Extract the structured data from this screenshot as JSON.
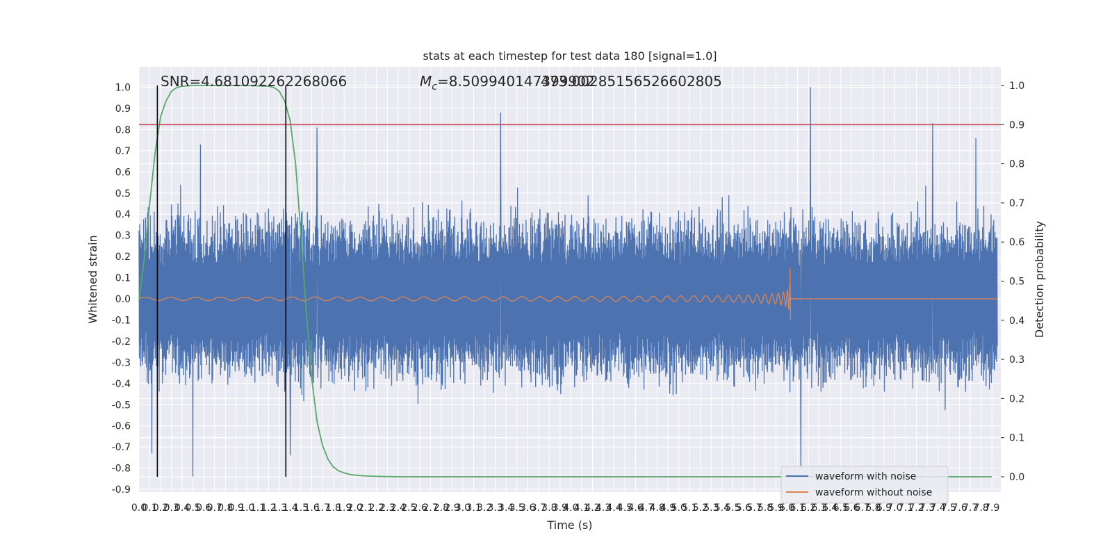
{
  "chart_data": {
    "type": "line",
    "title": "stats at each timestep for test data 180 [signal=1.0]",
    "xlabel": "Time (s)",
    "ylabel": "Whitened strain",
    "ylabel_right": "Detection probability",
    "xlim": [
      0.0,
      7.95
    ],
    "ylim": [
      -0.95,
      1.08
    ],
    "ylim_right": [
      -0.05,
      1.05
    ],
    "x_ticks": [
      0.0,
      0.1,
      0.2,
      0.3,
      0.4,
      0.5,
      0.6,
      0.7,
      0.8,
      0.9,
      1.0,
      1.1,
      1.2,
      1.3,
      1.4,
      1.5,
      1.6,
      1.7,
      1.8,
      1.9,
      2.0,
      2.1,
      2.2,
      2.3,
      2.4,
      2.5,
      2.6,
      2.7,
      2.8,
      2.9,
      3.0,
      3.1,
      3.2,
      3.3,
      3.4,
      3.5,
      3.6,
      3.7,
      3.8,
      3.9,
      4.0,
      4.1,
      4.2,
      4.3,
      4.4,
      4.5,
      4.6,
      4.7,
      4.8,
      4.9,
      5.0,
      5.1,
      5.2,
      5.3,
      5.4,
      5.5,
      5.6,
      5.7,
      5.8,
      5.9,
      6.0,
      6.1,
      6.2,
      6.3,
      6.4,
      6.5,
      6.6,
      6.7,
      6.8,
      6.9,
      7.0,
      7.1,
      7.2,
      7.3,
      7.4,
      7.5,
      7.6,
      7.7,
      7.8,
      7.9
    ],
    "y_ticks": [
      -0.9,
      -0.8,
      -0.7,
      -0.6,
      -0.5,
      -0.4,
      -0.3,
      -0.2,
      -0.1,
      0.0,
      0.1,
      0.2,
      0.3,
      0.4,
      0.5,
      0.6,
      0.7,
      0.8,
      0.9,
      1.0
    ],
    "y_ticks_right": [
      0.0,
      0.1,
      0.2,
      0.3,
      0.4,
      0.5,
      0.6,
      0.7,
      0.8,
      0.9,
      1.0
    ],
    "grid": true,
    "legend_placement": "lower-right",
    "annotations": {
      "snr": "SNR=4.681092262268066",
      "mc_symbol": "M",
      "mc_sub": "c",
      "mc_value": "=8.509940147399902",
      "mc_overlap": "473.00285156526602805"
    },
    "series": [
      {
        "name": "waveform with noise",
        "color": "#4c72b0",
        "description_values": "dense noise, envelope approx ±0.45 with peaks to 1.0 at t≈6.2 and -0.84 at t≈0.5",
        "peaks": [
          {
            "x": 0.5,
            "y": -0.84
          },
          {
            "x": 0.57,
            "y": 0.73
          },
          {
            "x": 1.65,
            "y": 0.81
          },
          {
            "x": 3.35,
            "y": 0.88
          },
          {
            "x": 6.13,
            "y": -0.8
          },
          {
            "x": 6.22,
            "y": 1.0
          },
          {
            "x": 7.35,
            "y": 0.83
          },
          {
            "x": 7.75,
            "y": 0.76
          },
          {
            "x": 0.12,
            "y": -0.73
          },
          {
            "x": 1.4,
            "y": -0.74
          }
        ]
      },
      {
        "name": "waveform without noise",
        "color": "#dd8452",
        "chirp_start": 0.0,
        "chirp_end": 6.03,
        "start_amplitude": 0.008,
        "peak_amplitude": 0.15
      }
    ],
    "detection_probability": {
      "color": "#55a868",
      "x": [
        0.0,
        0.05,
        0.1,
        0.15,
        0.2,
        0.25,
        0.3,
        0.35,
        0.4,
        0.5,
        0.6,
        0.8,
        1.0,
        1.2,
        1.25,
        1.3,
        1.35,
        1.4,
        1.45,
        1.5,
        1.55,
        1.6,
        1.65,
        1.7,
        1.75,
        1.8,
        1.85,
        1.9,
        1.95,
        2.0,
        2.1,
        2.2,
        2.4,
        2.6,
        3.0,
        4.0,
        5.0,
        6.0,
        7.0,
        7.9
      ],
      "y": [
        0.45,
        0.56,
        0.7,
        0.83,
        0.92,
        0.96,
        0.985,
        0.995,
        0.998,
        1.0,
        1.0,
        1.0,
        1.0,
        0.998,
        0.995,
        0.985,
        0.96,
        0.91,
        0.8,
        0.62,
        0.42,
        0.25,
        0.14,
        0.08,
        0.045,
        0.025,
        0.015,
        0.01,
        0.006,
        0.004,
        0.002,
        0.001,
        0.0,
        0.0,
        0.0,
        0.0,
        0.0,
        0.0,
        0.0,
        0.0
      ]
    },
    "threshold_prob": 0.9,
    "threshold_color": "#c44e52",
    "vertical_lines": [
      0.17,
      1.36
    ],
    "vertical_lines_range_prob": [
      0.0,
      1.0
    ]
  }
}
